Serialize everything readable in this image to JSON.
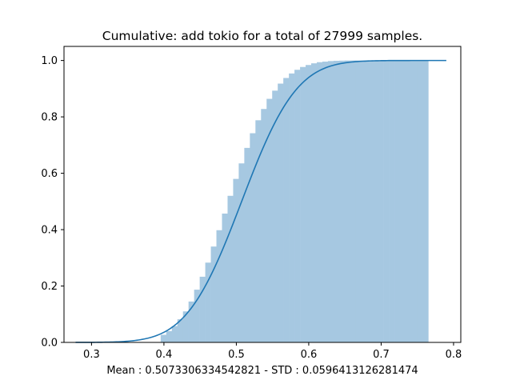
{
  "chart_data": {
    "type": "bar",
    "title": "Cumulative: add tokio for a total of 27999 samples.",
    "xlabel": "Mean : 0.5073306334542821 - STD : 0.0596413126281474",
    "ylabel": "",
    "xlim": [
      0.262,
      0.81
    ],
    "ylim": [
      0.0,
      1.05
    ],
    "xticks": [
      0.3,
      0.4,
      0.5,
      0.6,
      0.7,
      0.8
    ],
    "yticks": [
      0.0,
      0.2,
      0.4,
      0.6,
      0.8,
      1.0
    ],
    "xtick_labels": [
      "0.3",
      "0.4",
      "0.5",
      "0.6",
      "0.7",
      "0.8"
    ],
    "ytick_labels": [
      "0.0",
      "0.2",
      "0.4",
      "0.6",
      "0.8",
      "1.0"
    ],
    "grid": false,
    "colors": {
      "bars": "#a6c8e1",
      "line": "#1f77b4",
      "axes": "#000000"
    },
    "series": [
      {
        "type": "histogram",
        "bin_edges": [
          0.3955,
          0.4032,
          0.4109,
          0.4186,
          0.4263,
          0.434,
          0.4417,
          0.4494,
          0.4571,
          0.4648,
          0.4725,
          0.4802,
          0.4879,
          0.4956,
          0.5033,
          0.511,
          0.5187,
          0.5264,
          0.5341,
          0.5418,
          0.5495,
          0.5572,
          0.5649,
          0.5726,
          0.5803,
          0.588,
          0.5957,
          0.6034,
          0.6111,
          0.6188,
          0.6265,
          0.6342,
          0.6419,
          0.6496,
          0.6573,
          0.665,
          0.6727,
          0.6804,
          0.6881,
          0.6958,
          0.7035,
          0.7112,
          0.7189,
          0.7266,
          0.7343,
          0.742,
          0.7497,
          0.7574,
          0.7651
        ],
        "values": [
          0.027,
          0.04,
          0.058,
          0.082,
          0.11,
          0.145,
          0.187,
          0.233,
          0.283,
          0.34,
          0.398,
          0.457,
          0.52,
          0.58,
          0.635,
          0.69,
          0.742,
          0.788,
          0.828,
          0.864,
          0.893,
          0.918,
          0.938,
          0.954,
          0.967,
          0.977,
          0.984,
          0.99,
          0.994,
          0.996,
          0.998,
          0.999,
          0.9995,
          1.0,
          1.0,
          1.0,
          1.0,
          1.0,
          1.0,
          1.0,
          1.0,
          1.0,
          1.0,
          1.0,
          1.0,
          1.0,
          1.0,
          1.0
        ]
      },
      {
        "type": "line",
        "x_range": [
          0.278,
          0.79
        ],
        "mean": 0.5073306334542821,
        "std": 0.0596413126281474
      }
    ]
  }
}
